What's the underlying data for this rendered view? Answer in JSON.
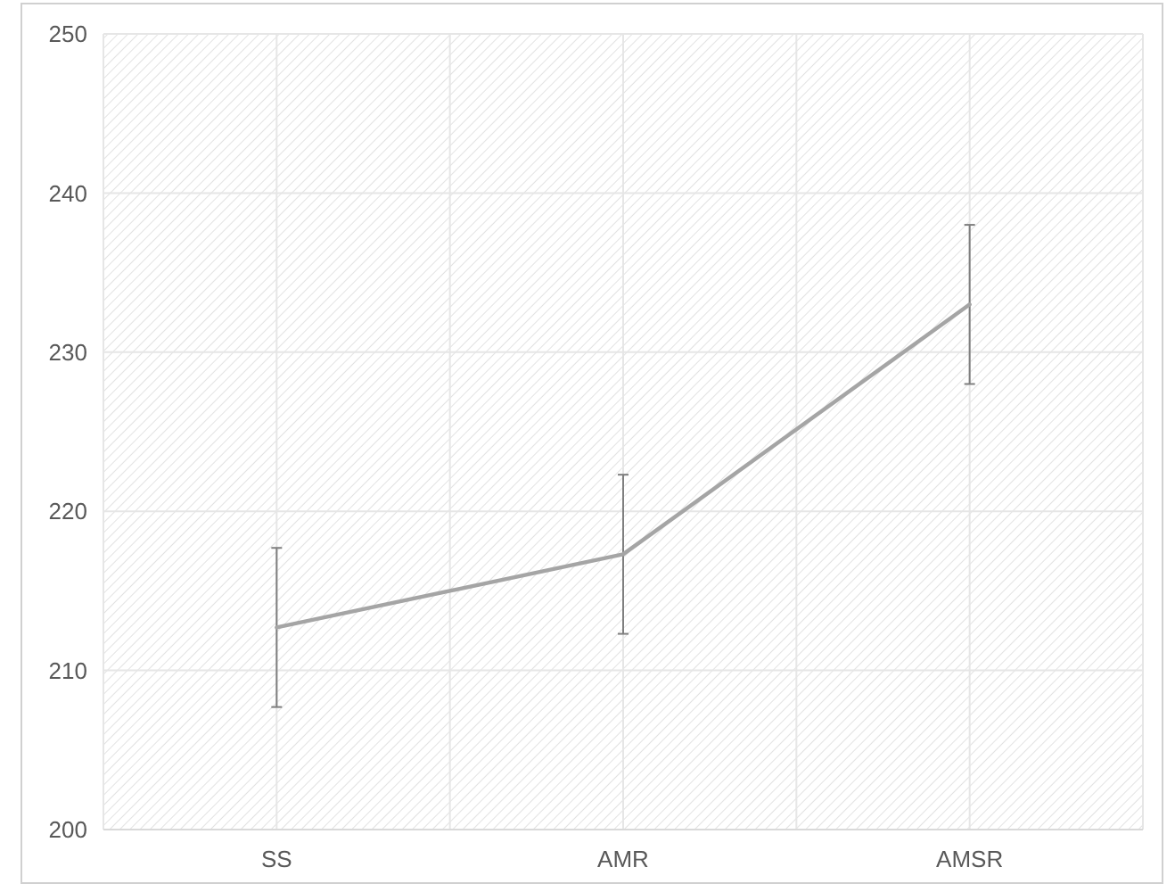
{
  "chart_data": {
    "type": "line",
    "categories": [
      "SS",
      "AMR",
      "AMSR"
    ],
    "series": [
      {
        "color": "#a5a5a5",
        "values": [
          212.7,
          217.3,
          233
        ],
        "errors": [
          5,
          5,
          5
        ]
      }
    ],
    "ylim": [
      200,
      250
    ],
    "yticks": [
      200,
      210,
      220,
      230,
      240,
      250
    ],
    "grid": true,
    "marker": "none",
    "line_style": "solid"
  }
}
